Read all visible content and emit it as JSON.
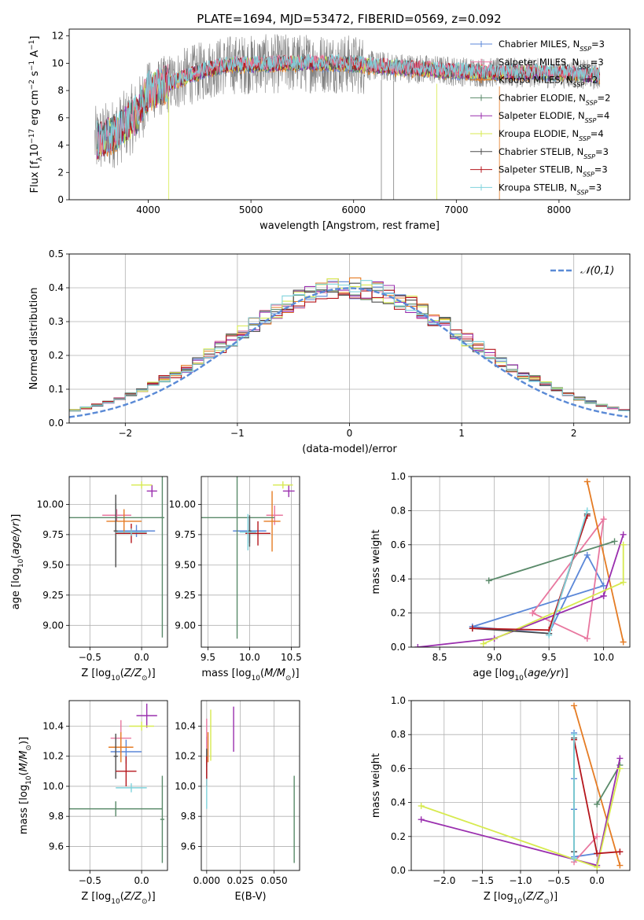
{
  "figure": {
    "title": "PLATE=1694, MJD=53472, FIBERID=0569, z=0.092"
  },
  "colors": {
    "grid": "#b0b0b0",
    "normal_curve": "#5a8ad6",
    "spectrum_data": "#808080"
  },
  "chart_data": [
    {
      "id": "spectrum",
      "type": "line",
      "title": "PLATE=1694, MJD=53472, FIBERID=0569, z=0.092",
      "xlabel": "wavelength [Angstrom, rest frame]",
      "ylabel": "Flux [f_λ 10^-17 erg cm^-2 s^-1 A^-1]",
      "xlim": [
        3230,
        8690
      ],
      "ylim": [
        0,
        12.5
      ],
      "xticks": [
        4000,
        5000,
        6000,
        7000,
        8000
      ],
      "yticks": [
        0,
        2,
        4,
        6,
        8,
        10,
        12
      ],
      "continuum_x": [
        3500,
        3700,
        3900,
        4000,
        4200,
        4400,
        4600,
        4800,
        5000,
        5400,
        5800,
        6200,
        6600,
        7000,
        7400,
        7800,
        8200,
        8400
      ],
      "continuum_y": [
        4.3,
        5.0,
        6.3,
        7.9,
        8.5,
        9.1,
        9.6,
        9.9,
        9.9,
        10.0,
        10.0,
        9.8,
        9.6,
        9.4,
        9.3,
        9.3,
        9.2,
        9.1
      ],
      "legend": [
        {
          "model": "Chabrier MILES",
          "n": "3",
          "color": "#5b87d8"
        },
        {
          "model": "Salpeter MILES",
          "n": "3",
          "color": "#e8779f"
        },
        {
          "model": "Kroupa MILES",
          "n": "2",
          "color": "#e57c24"
        },
        {
          "model": "Chabrier ELODIE",
          "n": "2",
          "color": "#5a8a6a"
        },
        {
          "model": "Salpeter ELODIE",
          "n": "4",
          "color": "#9a2fae"
        },
        {
          "model": "Kroupa ELODIE",
          "n": "4",
          "color": "#d7ea4f"
        },
        {
          "model": "Chabrier STELIB",
          "n": "3",
          "color": "#4d4d4d"
        },
        {
          "model": "Salpeter STELIB",
          "n": "3",
          "color": "#b5161c"
        },
        {
          "model": "Kroupa STELIB",
          "n": "3",
          "color": "#7fd3dc"
        }
      ],
      "legend_location": "right"
    },
    {
      "id": "residuals",
      "type": "histogram",
      "xlabel": "(data-model)/error",
      "ylabel": "Normed distribution",
      "xlim": [
        -2.5,
        2.5
      ],
      "ylim": [
        0,
        0.5
      ],
      "xticks": [
        -2,
        -1,
        0,
        1,
        2
      ],
      "yticks": [
        0.0,
        0.1,
        0.2,
        0.3,
        0.4,
        0.5
      ],
      "bin_width": 0.1,
      "curve_label": "𝒩(0,1)",
      "legend_location": "top-right",
      "grid": true
    },
    {
      "id": "age_vs_Z",
      "type": "errorbar",
      "xlabel": "Z [log10(Z/Z⊙)]",
      "ylabel": "age [log10(age/yr)]",
      "xlim": [
        -0.7,
        0.25
      ],
      "ylim": [
        8.82,
        10.23
      ],
      "xticks": [
        -0.5,
        0.0
      ],
      "yticks": [
        9.0,
        9.25,
        9.5,
        9.75,
        10.0
      ],
      "points": [
        {
          "x": -0.05,
          "y": 9.78,
          "xerr": 0.18,
          "yerr": 0.05,
          "color": "#5b87d8"
        },
        {
          "x": -0.24,
          "y": 9.91,
          "xerr": 0.14,
          "yerr": 0.05,
          "color": "#e8779f"
        },
        {
          "x": -0.17,
          "y": 9.86,
          "xerr": 0.17,
          "yerr": 0.1,
          "color": "#e57c24"
        },
        {
          "x": -0.25,
          "y": 9.89,
          "xerr": 0.45,
          "yerr": 0.12,
          "color": "#5a8a6a"
        },
        {
          "x": 0.2,
          "y": 9.89,
          "xerr": 0.02,
          "yerr": 0.99,
          "color": "#5a8a6a"
        },
        {
          "x": 0.1,
          "y": 10.11,
          "xerr": 0.05,
          "yerr": 0.05,
          "color": "#9a2fae"
        },
        {
          "x": 0.0,
          "y": 10.16,
          "xerr": 0.1,
          "yerr": 0.03,
          "color": "#d7ea4f"
        },
        {
          "x": -0.25,
          "y": 9.78,
          "xerr": 0.02,
          "yerr": 0.3,
          "color": "#4d4d4d"
        },
        {
          "x": -0.1,
          "y": 9.76,
          "xerr": 0.15,
          "yerr": 0.08,
          "color": "#b5161c"
        },
        {
          "x": -0.1,
          "y": 9.77,
          "xerr": 0.15,
          "yerr": 0.03,
          "color": "#7fd3dc"
        }
      ]
    },
    {
      "id": "age_vs_mass",
      "type": "errorbar",
      "xlabel": "mass [log10(M/M⊙)]",
      "ylabel": "",
      "xlim": [
        9.42,
        10.6
      ],
      "ylim": [
        8.82,
        10.23
      ],
      "xticks": [
        9.5,
        10.0,
        10.5
      ],
      "yticks": [
        9.0,
        9.25,
        9.5,
        9.75,
        10.0
      ],
      "points": [
        {
          "x": 10.0,
          "y": 9.78,
          "xerr": 0.2,
          "yerr": 0.1,
          "color": "#5b87d8"
        },
        {
          "x": 10.3,
          "y": 9.91,
          "xerr": 0.1,
          "yerr": 0.08,
          "color": "#e8779f"
        },
        {
          "x": 10.27,
          "y": 9.86,
          "xerr": 0.1,
          "yerr": 0.25,
          "color": "#e57c24"
        },
        {
          "x": 9.85,
          "y": 9.89,
          "xerr": 0.45,
          "yerr": 1.0,
          "color": "#5a8a6a"
        },
        {
          "x": 10.47,
          "y": 10.11,
          "xerr": 0.07,
          "yerr": 0.05,
          "color": "#9a2fae"
        },
        {
          "x": 10.4,
          "y": 10.16,
          "xerr": 0.12,
          "yerr": 0.03,
          "color": "#d7ea4f"
        },
        {
          "x": 10.0,
          "y": 9.78,
          "xerr": 0.02,
          "yerr": 0.13,
          "color": "#4d4d4d"
        },
        {
          "x": 10.1,
          "y": 9.76,
          "xerr": 0.15,
          "yerr": 0.1,
          "color": "#b5161c"
        },
        {
          "x": 9.98,
          "y": 9.77,
          "xerr": 0.1,
          "yerr": 0.15,
          "color": "#7fd3dc"
        }
      ]
    },
    {
      "id": "weights_vs_age",
      "type": "line",
      "xlabel": "age [log10(age/yr)]",
      "ylabel": "mass weight",
      "xlim": [
        8.24,
        10.24
      ],
      "ylim": [
        0,
        1.0
      ],
      "xticks": [
        8.5,
        9.0,
        9.5,
        10.0
      ],
      "yticks": [
        0.0,
        0.2,
        0.4,
        0.6,
        0.8,
        1.0
      ],
      "grid": true,
      "series": [
        {
          "color": "#5b87d8",
          "points": [
            [
              8.8,
              0.12
            ],
            [
              9.5,
              0.08
            ],
            [
              9.85,
              0.54
            ],
            [
              10.0,
              0.36
            ],
            [
              8.8,
              0.12
            ]
          ]
        },
        {
          "color": "#e8779f",
          "points": [
            [
              9.35,
              0.2
            ],
            [
              9.85,
              0.05
            ],
            [
              10.0,
              0.75
            ],
            [
              9.35,
              0.2
            ]
          ]
        },
        {
          "color": "#e57c24",
          "points": [
            [
              9.85,
              0.97
            ],
            [
              10.18,
              0.03
            ]
          ]
        },
        {
          "color": "#5a8a6a",
          "points": [
            [
              8.95,
              0.39
            ],
            [
              10.1,
              0.62
            ]
          ]
        },
        {
          "color": "#9a2fae",
          "points": [
            [
              8.3,
              0.0
            ],
            [
              9.0,
              0.05
            ],
            [
              10.0,
              0.3
            ],
            [
              10.18,
              0.66
            ],
            [
              10.0,
              0.3
            ]
          ]
        },
        {
          "color": "#d7ea4f",
          "points": [
            [
              8.9,
              0.02
            ],
            [
              10.18,
              0.38
            ],
            [
              10.18,
              0.6
            ]
          ]
        },
        {
          "color": "#4d4d4d",
          "points": [
            [
              8.8,
              0.11
            ],
            [
              9.5,
              0.08
            ],
            [
              9.85,
              0.78
            ]
          ]
        },
        {
          "color": "#b5161c",
          "points": [
            [
              8.8,
              0.11
            ],
            [
              9.5,
              0.1
            ],
            [
              9.85,
              0.77
            ]
          ]
        },
        {
          "color": "#7fd3dc",
          "points": [
            [
              9.5,
              0.07
            ],
            [
              9.85,
              0.8
            ]
          ]
        }
      ]
    },
    {
      "id": "mass_vs_Z",
      "type": "errorbar",
      "xlabel": "Z [log10(Z/Z⊙)]",
      "ylabel": "mass [log10(M/M⊙)]",
      "xlim": [
        -0.7,
        0.25
      ],
      "ylim": [
        9.44,
        10.57
      ],
      "xticks": [
        -0.5,
        0.0
      ],
      "yticks": [
        9.6,
        9.8,
        10.0,
        10.2,
        10.4
      ],
      "points": [
        {
          "x": -0.15,
          "y": 10.23,
          "xerr": 0.15,
          "yerr": 0.08,
          "color": "#5b87d8"
        },
        {
          "x": -0.2,
          "y": 10.32,
          "xerr": 0.1,
          "yerr": 0.12,
          "color": "#e8779f"
        },
        {
          "x": -0.2,
          "y": 10.26,
          "xerr": 0.12,
          "yerr": 0.1,
          "color": "#e57c24"
        },
        {
          "x": -0.25,
          "y": 9.85,
          "xerr": 0.45,
          "yerr": 0.05,
          "color": "#5a8a6a"
        },
        {
          "x": 0.2,
          "y": 9.78,
          "xerr": 0.02,
          "yerr": 0.29,
          "color": "#5a8a6a"
        },
        {
          "x": 0.05,
          "y": 10.47,
          "xerr": 0.1,
          "yerr": 0.08,
          "color": "#9a2fae"
        },
        {
          "x": 0.0,
          "y": 10.4,
          "xerr": 0.12,
          "yerr": 0.03,
          "color": "#d7ea4f"
        },
        {
          "x": -0.25,
          "y": 10.2,
          "xerr": 0.02,
          "yerr": 0.15,
          "color": "#4d4d4d"
        },
        {
          "x": -0.15,
          "y": 10.1,
          "xerr": 0.1,
          "yerr": 0.1,
          "color": "#b5161c"
        },
        {
          "x": -0.1,
          "y": 9.99,
          "xerr": 0.15,
          "yerr": 0.03,
          "color": "#7fd3dc"
        }
      ]
    },
    {
      "id": "mass_vs_ebv",
      "type": "errorbar",
      "xlabel": "E(B-V)",
      "ylabel": "",
      "xlim": [
        -0.004,
        0.069
      ],
      "ylim": [
        9.44,
        10.57
      ],
      "xticks": [
        0.0,
        0.025,
        0.05
      ],
      "xticklabels": [
        "0.000",
        "0.025",
        "0.050"
      ],
      "yticks": [
        9.6,
        9.8,
        10.0,
        10.2,
        10.4
      ],
      "points": [
        {
          "x": 0.0,
          "y": 10.23,
          "xerr": 0,
          "yerr": 0.1,
          "color": "#5b87d8"
        },
        {
          "x": 0.0,
          "y": 10.3,
          "xerr": 0,
          "yerr": 0.15,
          "color": "#e8779f"
        },
        {
          "x": 0.001,
          "y": 10.26,
          "xerr": 0,
          "yerr": 0.1,
          "color": "#e57c24"
        },
        {
          "x": 0.065,
          "y": 9.78,
          "xerr": 0,
          "yerr": 0.29,
          "color": "#5a8a6a"
        },
        {
          "x": 0.02,
          "y": 10.38,
          "xerr": 0,
          "yerr": 0.15,
          "color": "#9a2fae"
        },
        {
          "x": 0.003,
          "y": 10.34,
          "xerr": 0,
          "yerr": 0.17,
          "color": "#d7ea4f"
        },
        {
          "x": 0.0,
          "y": 10.15,
          "xerr": 0,
          "yerr": 0.1,
          "color": "#4d4d4d"
        },
        {
          "x": 0.0,
          "y": 10.1,
          "xerr": 0,
          "yerr": 0.1,
          "color": "#b5161c"
        },
        {
          "x": 0.0,
          "y": 9.95,
          "xerr": 0,
          "yerr": 0.1,
          "color": "#7fd3dc"
        }
      ]
    },
    {
      "id": "weights_vs_Z",
      "type": "line",
      "xlabel": "Z [log10(Z/Z⊙)]",
      "ylabel": "mass weight",
      "xlim": [
        -2.43,
        0.43
      ],
      "ylim": [
        0,
        1.0
      ],
      "xticks": [
        -2.0,
        -1.5,
        -1.0,
        -0.5,
        0.0
      ],
      "yticks": [
        0.0,
        0.2,
        0.4,
        0.6,
        0.8,
        1.0
      ],
      "grid": true,
      "series": [
        {
          "color": "#5b87d8",
          "points": [
            [
              -0.3,
              0.81
            ],
            [
              -0.3,
              0.54
            ],
            [
              -0.3,
              0.36
            ],
            [
              -0.3,
              0.08
            ],
            [
              0.0,
              0.1
            ]
          ]
        },
        {
          "color": "#e8779f",
          "points": [
            [
              -0.3,
              0.05
            ],
            [
              0.0,
              0.2
            ]
          ]
        },
        {
          "color": "#e57c24",
          "points": [
            [
              -0.3,
              0.97
            ],
            [
              0.3,
              0.03
            ]
          ]
        },
        {
          "color": "#5a8a6a",
          "points": [
            [
              0.0,
              0.39
            ],
            [
              0.3,
              0.62
            ]
          ]
        },
        {
          "color": "#9a2fae",
          "points": [
            [
              -2.3,
              0.3
            ],
            [
              0.0,
              0.03
            ],
            [
              0.3,
              0.66
            ]
          ]
        },
        {
          "color": "#d7ea4f",
          "points": [
            [
              -2.3,
              0.38
            ],
            [
              0.0,
              0.02
            ],
            [
              0.3,
              0.6
            ]
          ]
        },
        {
          "color": "#4d4d4d",
          "points": [
            [
              -0.3,
              0.78
            ],
            [
              -0.3,
              0.11
            ]
          ]
        },
        {
          "color": "#b5161c",
          "points": [
            [
              -0.3,
              0.77
            ],
            [
              0.0,
              0.1
            ],
            [
              0.3,
              0.11
            ]
          ]
        },
        {
          "color": "#7fd3dc",
          "points": [
            [
              -0.3,
              0.8
            ],
            [
              -0.3,
              0.07
            ]
          ]
        }
      ]
    }
  ]
}
